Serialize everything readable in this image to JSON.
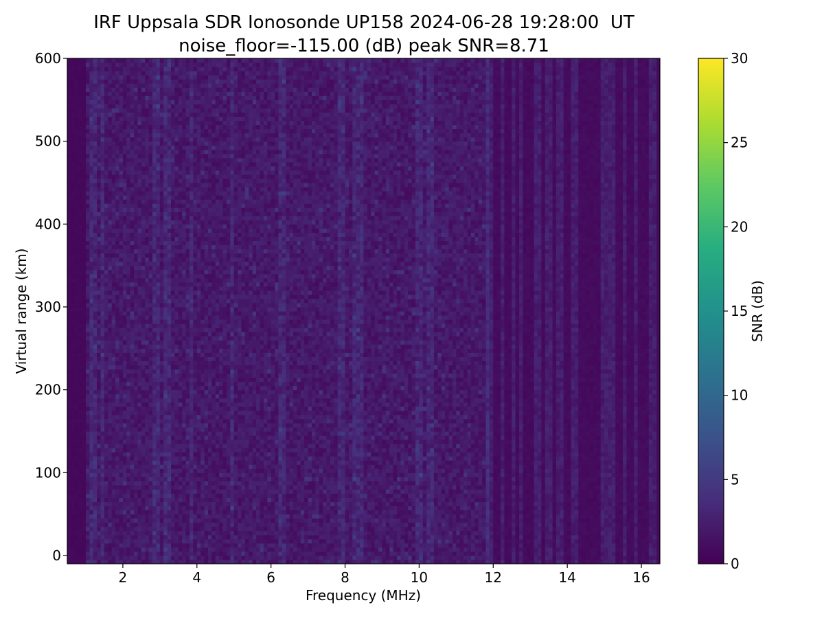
{
  "chart_data": [
    {
      "type": "heatmap",
      "title": "IRF Uppsala SDR Ionosonde UP158 2024-06-28 19:28:00  UT",
      "subtitle": "noise_floor=-115.00 (dB) peak SNR=8.71",
      "xlabel": "Frequency (MHz)",
      "ylabel": "Virtual range (km)",
      "xlim": [
        0.5,
        16.5
      ],
      "ylim": [
        -10,
        600
      ],
      "xticks": [
        2,
        4,
        6,
        8,
        10,
        12,
        14,
        16
      ],
      "yticks": [
        0,
        100,
        200,
        300,
        400,
        500,
        600
      ],
      "data_xlim": [
        0.5,
        16.4
      ],
      "data_ylim": [
        -10,
        600
      ],
      "grid": false,
      "colormap": "viridis",
      "colorbar": {
        "label": "SNR (dB)",
        "range": [
          0,
          30
        ],
        "ticks": [
          0,
          5,
          10,
          15,
          20,
          25,
          30
        ]
      },
      "noise_floor_db": -115.0,
      "peak_snr_db": 8.71,
      "background_snr_db": 1.0,
      "quiet_band_mhz": [
        0.5,
        1.0
      ],
      "reduced_noise_above_mhz": 11.8,
      "enhanced_channels_mhz": [
        1.2,
        1.45,
        2.9,
        3.2,
        3.85,
        4.95,
        6.3,
        7.9,
        8.3,
        8.45,
        10.0,
        10.3,
        11.85
      ]
    }
  ]
}
